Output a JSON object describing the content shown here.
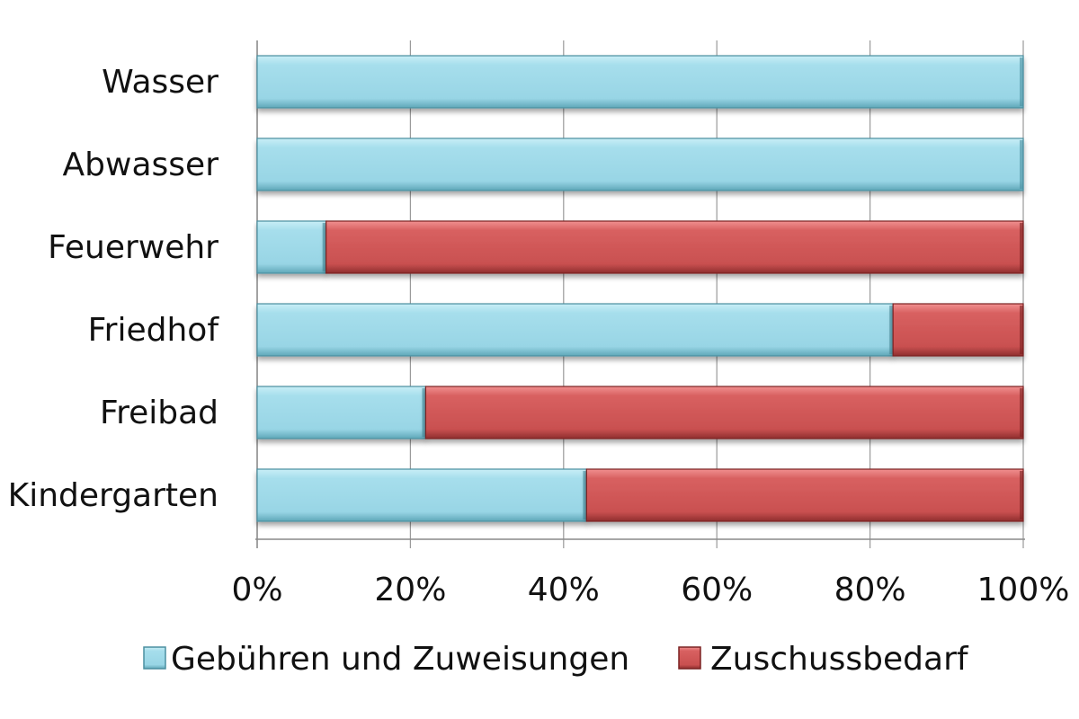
{
  "chart_data": {
    "type": "bar",
    "orientation": "horizontal",
    "stacked": "percent",
    "categories": [
      "Wasser",
      "Abwasser",
      "Feuerwehr",
      "Friedhof",
      "Freibad",
      "Kindergarten"
    ],
    "series": [
      {
        "name": "Gebühren und Zuweisungen",
        "values": [
          100,
          100,
          9,
          83,
          22,
          43
        ],
        "color": "#9ed9e8"
      },
      {
        "name": "Zuschussbedarf",
        "values": [
          0,
          0,
          91,
          17,
          78,
          57
        ],
        "color": "#cf5555"
      }
    ],
    "xlim": [
      0,
      100
    ],
    "x_ticks": [
      "0%",
      "20%",
      "40%",
      "60%",
      "80%",
      "100%"
    ],
    "grid": "vertical",
    "legend_position": "bottom"
  }
}
